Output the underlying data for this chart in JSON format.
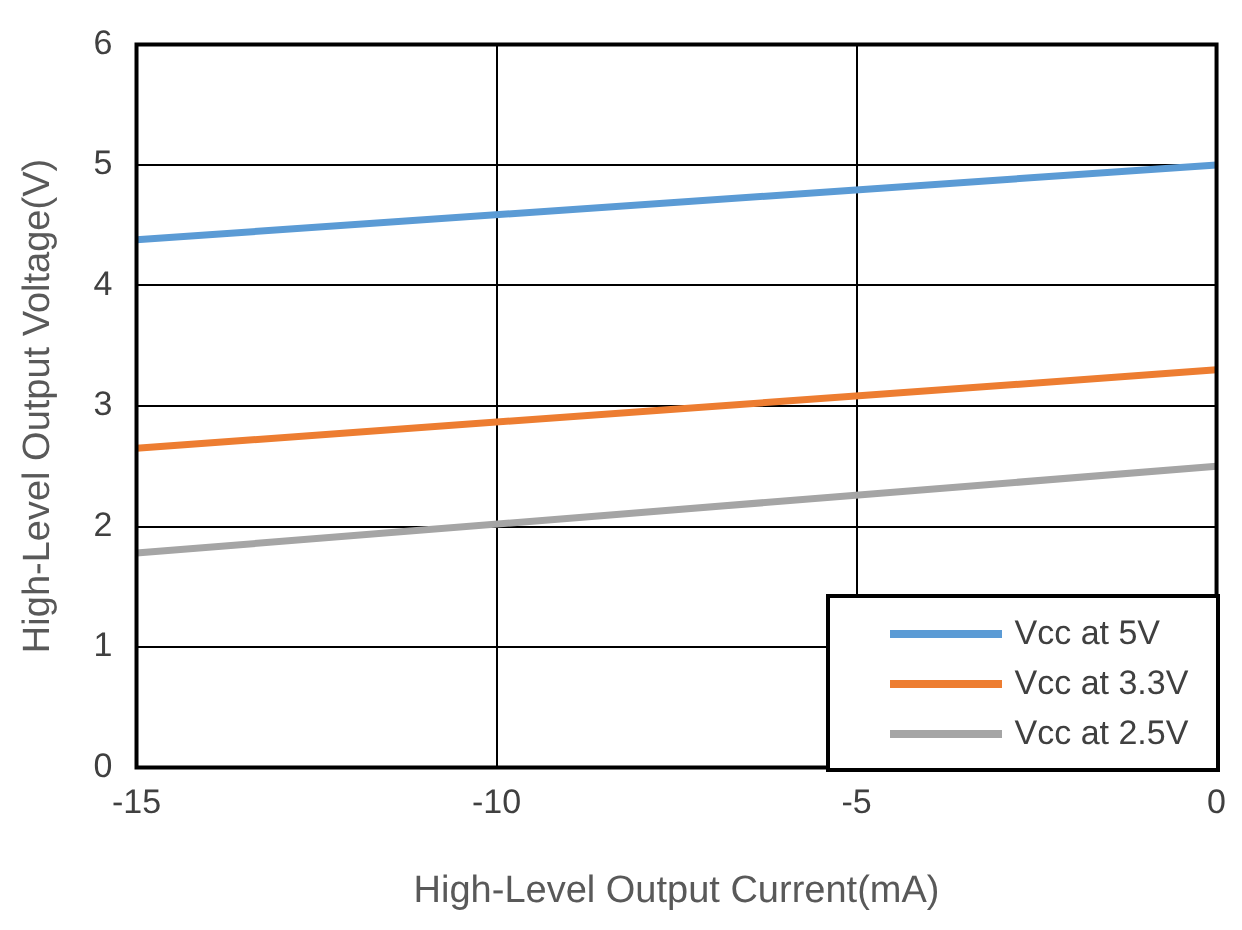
{
  "chart_data": {
    "type": "line",
    "xlabel": "High-Level Output Current(mA)",
    "ylabel": "High-Level Output Voltage(V)",
    "x": [
      -15,
      0
    ],
    "series": [
      {
        "name": "Vcc at 5V",
        "color": "#5b9bd5",
        "values": [
          4.38,
          5.0
        ]
      },
      {
        "name": "Vcc at 3.3V",
        "color": "#ed7d31",
        "values": [
          2.65,
          3.3
        ]
      },
      {
        "name": "Vcc at 2.5V",
        "color": "#a5a5a5",
        "values": [
          1.78,
          2.5
        ]
      }
    ],
    "xlim": [
      -15,
      0
    ],
    "xticks": [
      -15,
      -10,
      -5,
      0
    ],
    "ylim": [
      0,
      6
    ],
    "yticks": [
      0,
      1,
      2,
      3,
      4,
      5,
      6
    ],
    "grid": true,
    "legend": "bottom right",
    "marker": "none",
    "line_style": "solid"
  }
}
